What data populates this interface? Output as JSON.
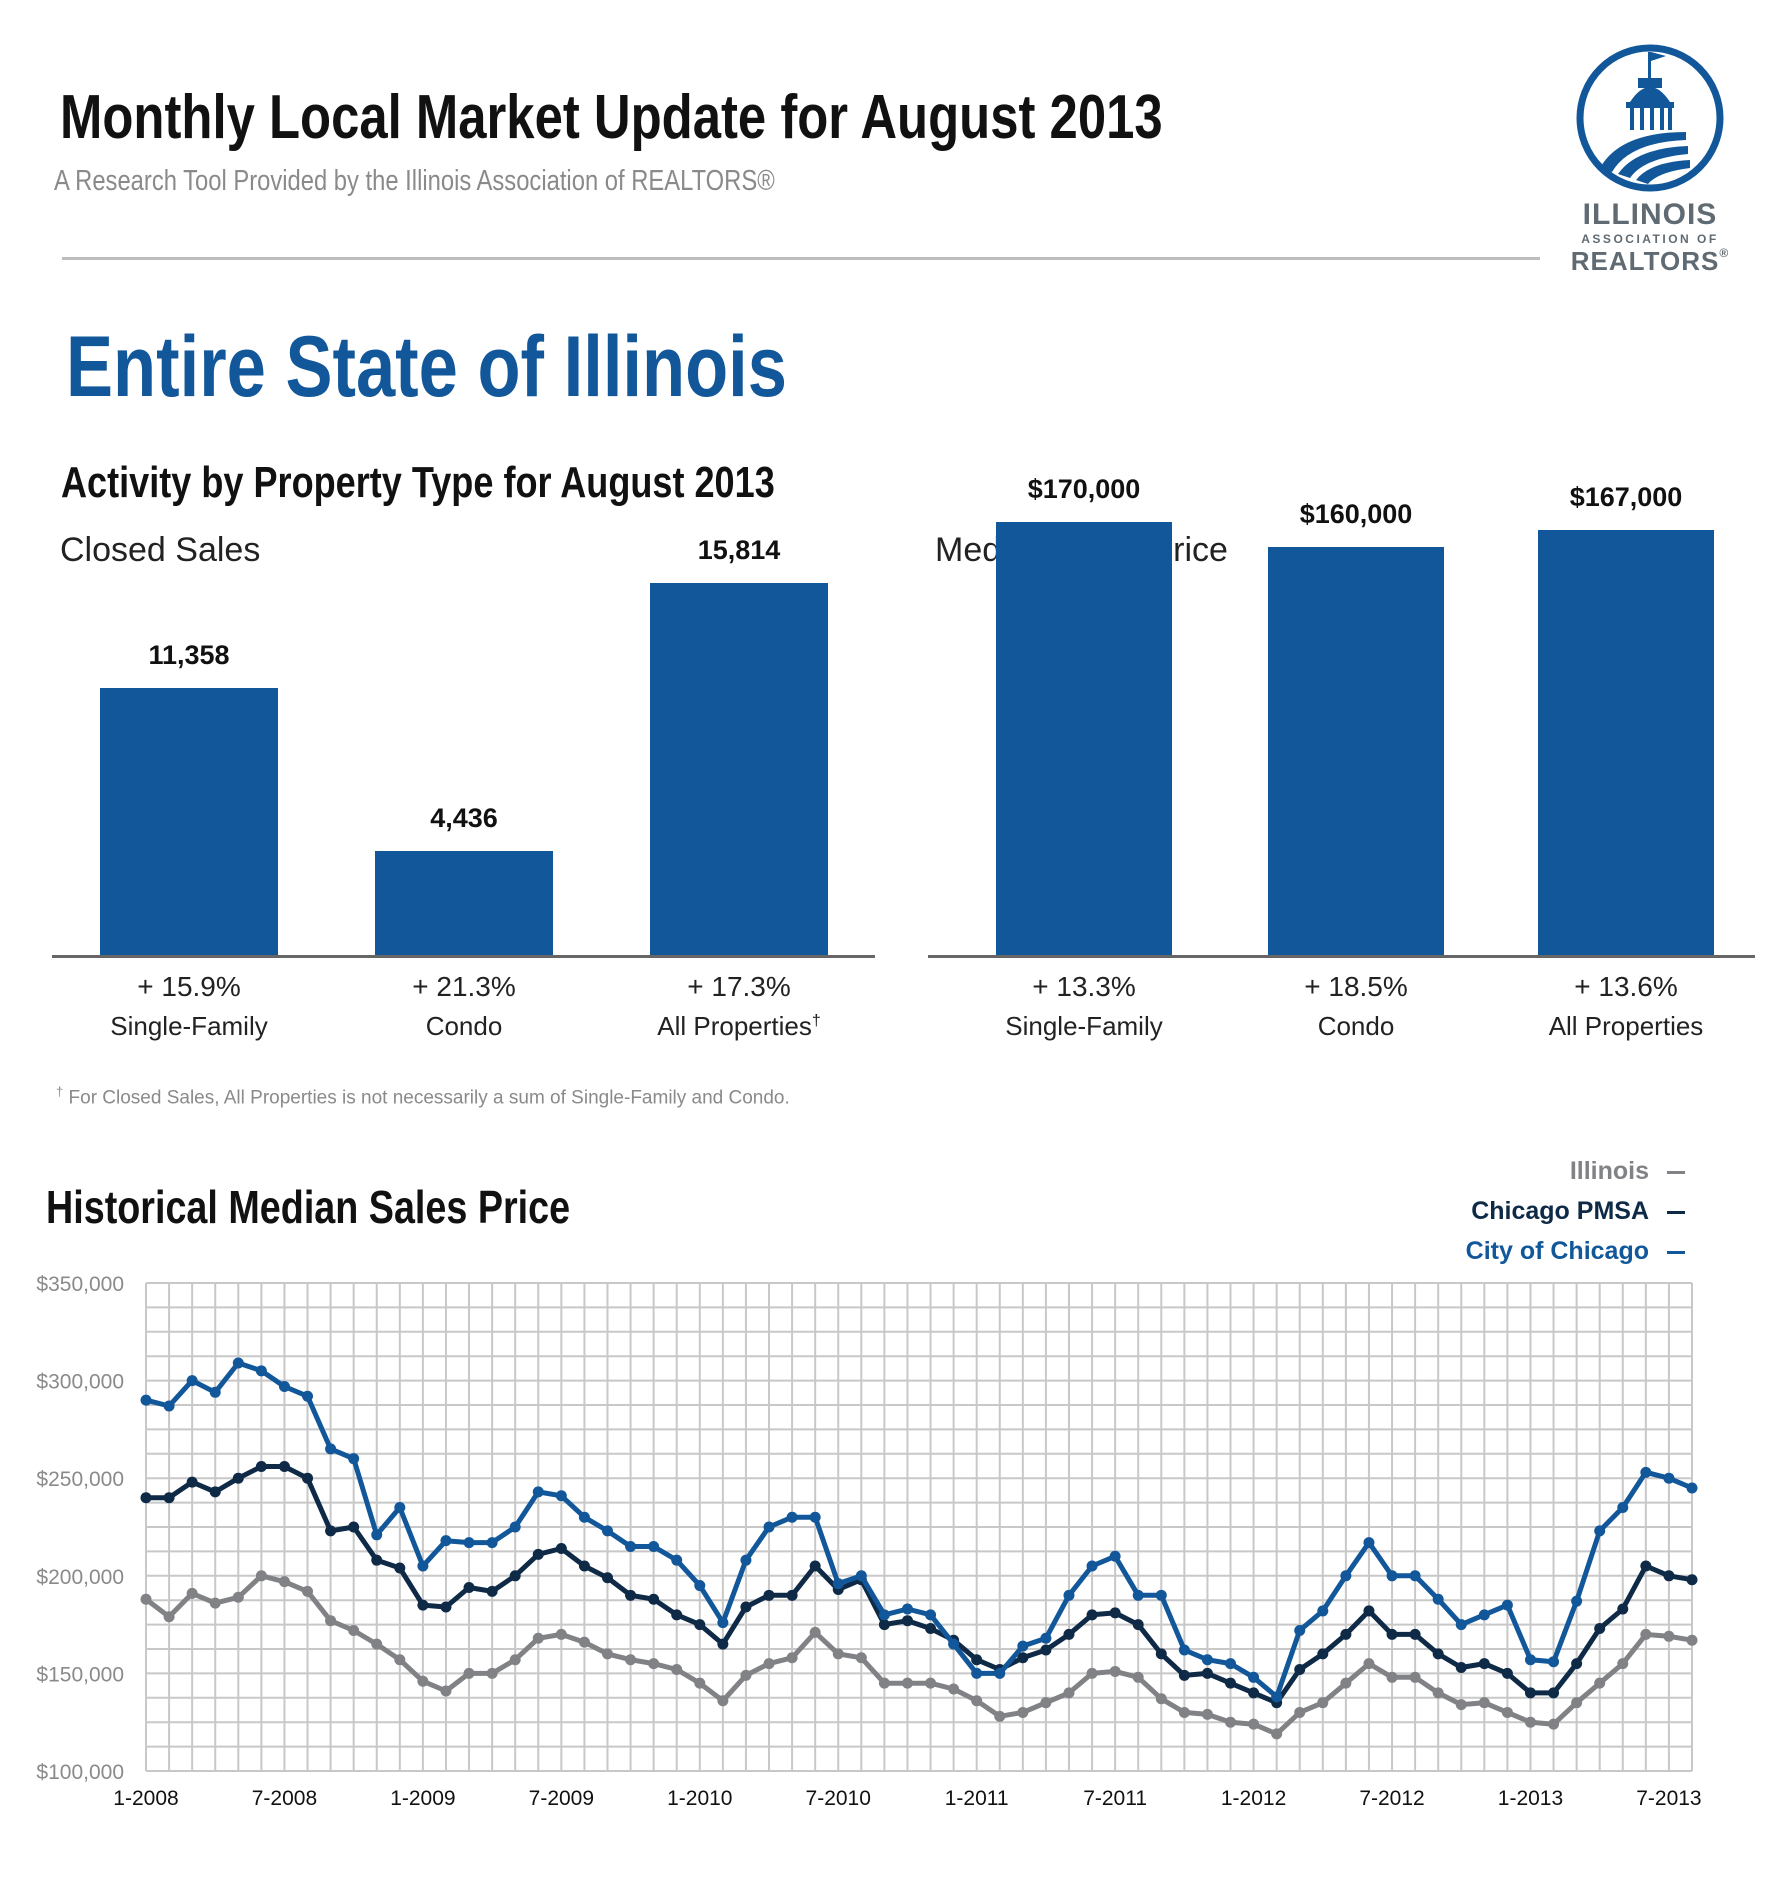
{
  "header": {
    "title": "Monthly Local Market Update for August 2013",
    "subtitle": "A Research Tool Provided by the Illinois Association of REALTORS®"
  },
  "logo": {
    "line1": "ILLINOIS",
    "line2": "ASSOCIATION OF",
    "line3": "REALTORS",
    "color": "#115799"
  },
  "region": "Entire State of Illinois",
  "activity": {
    "section_title": "Activity by Property Type for August 2013",
    "footnote_mark": "†",
    "footnote": "For Closed Sales, All Properties is not necessarily a sum of Single-Family and Condo."
  },
  "historical": {
    "title": "Historical Median Sales Price"
  },
  "colors": {
    "bar": "#115799",
    "illinois": "#808285",
    "chicago_pmsa": "#0e2a47",
    "city_of_chicago": "#115799",
    "grid": "#c8c8c8"
  },
  "chart_data": [
    {
      "type": "bar",
      "title": "Closed Sales",
      "categories": [
        "Single-Family",
        "Condo",
        "All Properties"
      ],
      "category_marks": [
        "",
        "",
        "†"
      ],
      "values": [
        11358,
        4436,
        15814
      ],
      "value_labels": [
        "11,358",
        "4,436",
        "15,814"
      ],
      "changes": [
        "+ 15.9%",
        "+ 21.3%",
        "+ 17.3%"
      ]
    },
    {
      "type": "bar",
      "title": "Median Sales Price",
      "categories": [
        "Single-Family",
        "Condo",
        "All Properties"
      ],
      "values": [
        170000,
        160000,
        167000
      ],
      "value_labels": [
        "$170,000",
        "$160,000",
        "$167,000"
      ],
      "changes": [
        "+ 13.3%",
        "+ 18.5%",
        "+ 13.6%"
      ]
    },
    {
      "type": "line",
      "title": "Historical Median Sales Price",
      "x_start": "1-2008",
      "x_end": "8-2013",
      "x_ticks": [
        "1-2008",
        "7-2008",
        "1-2009",
        "7-2009",
        "1-2010",
        "7-2010",
        "1-2011",
        "7-2011",
        "1-2012",
        "7-2012",
        "1-2013",
        "7-2013"
      ],
      "y_ticks": [
        "$100,000",
        "$150,000",
        "$200,000",
        "$250,000",
        "$300,000",
        "$350,000"
      ],
      "ylim": [
        100000,
        350000
      ],
      "grid": true,
      "legend_position": "top-right",
      "series": [
        {
          "name": "Illinois",
          "values": [
            188000,
            179000,
            191000,
            186000,
            189000,
            200000,
            197000,
            192000,
            177000,
            172000,
            165000,
            157000,
            146000,
            141000,
            150000,
            150000,
            157000,
            168000,
            170000,
            166000,
            160000,
            157000,
            155000,
            152000,
            145000,
            136000,
            149000,
            155000,
            158000,
            171000,
            160000,
            158000,
            145000,
            145000,
            145000,
            142000,
            136000,
            128000,
            130000,
            135000,
            140000,
            150000,
            151000,
            148000,
            137000,
            130000,
            129000,
            125000,
            124000,
            119000,
            130000,
            135000,
            145000,
            155000,
            148000,
            148000,
            140000,
            134000,
            135000,
            130000,
            125000,
            124000,
            135000,
            145000,
            155000,
            170000,
            169000,
            167000
          ]
        },
        {
          "name": "Chicago PMSA",
          "values": [
            240000,
            240000,
            248000,
            243000,
            250000,
            256000,
            256000,
            250000,
            223000,
            225000,
            208000,
            204000,
            185000,
            184000,
            194000,
            192000,
            200000,
            211000,
            214000,
            205000,
            199000,
            190000,
            188000,
            180000,
            175000,
            165000,
            184000,
            190000,
            190000,
            205000,
            193000,
            198000,
            175000,
            177000,
            173000,
            167000,
            157000,
            152000,
            158000,
            162000,
            170000,
            180000,
            181000,
            175000,
            160000,
            149000,
            150000,
            145000,
            140000,
            135000,
            152000,
            160000,
            170000,
            182000,
            170000,
            170000,
            160000,
            153000,
            155000,
            150000,
            140000,
            140000,
            155000,
            173000,
            183000,
            205000,
            200000,
            198000
          ]
        },
        {
          "name": "City of Chicago",
          "values": [
            290000,
            287000,
            300000,
            294000,
            309000,
            305000,
            297000,
            292000,
            265000,
            260000,
            221000,
            235000,
            205000,
            218000,
            217000,
            217000,
            225000,
            243000,
            241000,
            230000,
            223000,
            215000,
            215000,
            208000,
            195000,
            176000,
            208000,
            225000,
            230000,
            230000,
            196000,
            200000,
            180000,
            183000,
            180000,
            165000,
            150000,
            150000,
            164000,
            168000,
            190000,
            205000,
            210000,
            190000,
            190000,
            162000,
            157000,
            155000,
            148000,
            138000,
            172000,
            182000,
            200000,
            217000,
            200000,
            200000,
            188000,
            175000,
            180000,
            185000,
            157000,
            156000,
            187000,
            223000,
            235000,
            253000,
            250000,
            245000
          ]
        }
      ]
    }
  ]
}
